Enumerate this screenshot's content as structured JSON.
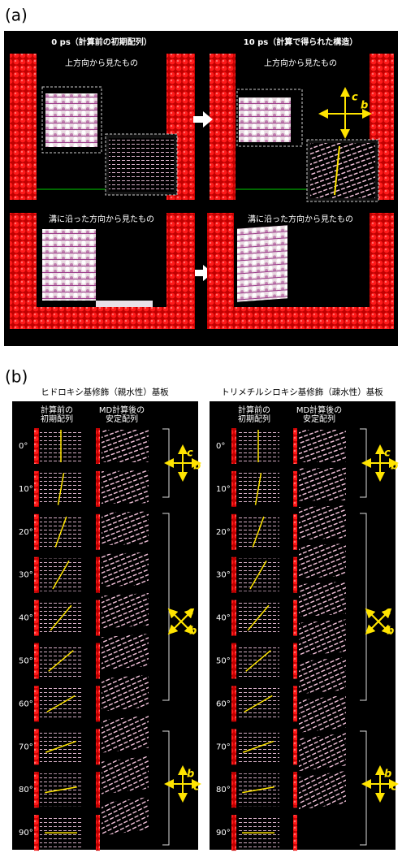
{
  "panel_a": {
    "label": "(a)",
    "left_title": "0 ps（計算前の初期配列）",
    "right_title": "10 ps（計算で得られた構造）",
    "top_view": "上方向から見たもの",
    "side_view": "溝に沿った方向から見たもの",
    "axis_c": "c",
    "axis_b": "b"
  },
  "panel_b": {
    "label": "(b)",
    "panels": [
      {
        "title": "ヒドロキシ基修飾（親水性）基板"
      },
      {
        "title": "トリメチルシロキシ基修飾（疎水性）基板"
      }
    ],
    "col1": [
      "計算前の",
      "初期配列"
    ],
    "col2": [
      "MD計算後の",
      "安定配列"
    ],
    "angles": [
      {
        "value": 0,
        "label": "0°"
      },
      {
        "value": 10,
        "label": "10°"
      },
      {
        "value": 20,
        "label": "20°"
      },
      {
        "value": 30,
        "label": "30°"
      },
      {
        "value": 40,
        "label": "40°"
      },
      {
        "value": 50,
        "label": "50°"
      },
      {
        "value": 60,
        "label": "60°"
      },
      {
        "value": 70,
        "label": "70°"
      },
      {
        "value": 80,
        "label": "80°"
      },
      {
        "value": 90,
        "label": "90°"
      }
    ],
    "axis_c": "c",
    "axis_b": "b"
  }
}
